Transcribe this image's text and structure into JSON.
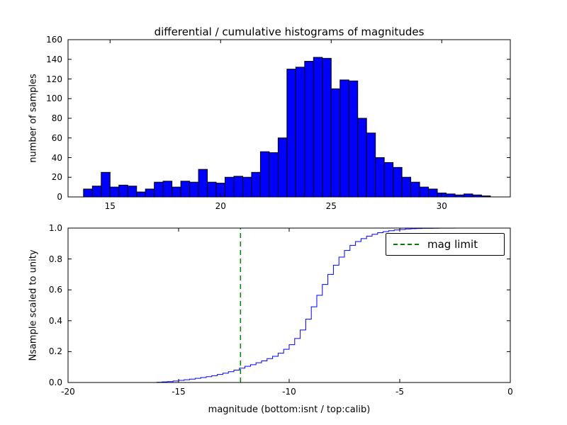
{
  "chart_data": [
    {
      "type": "bar",
      "title": "differential / cumulative histograms of magnitudes",
      "ylabel": "number of samples",
      "xlim": [
        13.1,
        33.1
      ],
      "ylim": [
        0,
        160
      ],
      "xtick_labels": [
        "15",
        "20",
        "25",
        "30"
      ],
      "ytick_labels": [
        "0",
        "20",
        "40",
        "60",
        "80",
        "100",
        "120",
        "140",
        "160"
      ],
      "bar_color": "#0000ff",
      "bar_edge_color": "#000000",
      "bins_start": 13.8,
      "bin_width": 0.4,
      "values": [
        8,
        11,
        25,
        10,
        12,
        11,
        5,
        8,
        15,
        16,
        10,
        16,
        15,
        28,
        15,
        14,
        20,
        21,
        20,
        25,
        46,
        45,
        60,
        130,
        132,
        138,
        142,
        141,
        110,
        119,
        118,
        80,
        65,
        40,
        35,
        30,
        20,
        15,
        10,
        8,
        4,
        3,
        2,
        3,
        2,
        1
      ]
    },
    {
      "type": "line",
      "ylabel": "Nsample scaled to unity",
      "xlabel": "magnitude (bottom:isnt / top:calib)",
      "xlim": [
        -20,
        0
      ],
      "ylim": [
        0,
        1
      ],
      "xtick_labels": [
        "-20",
        "-15",
        "-10",
        "-5",
        "0"
      ],
      "ytick_labels": [
        "0.0",
        "0.2",
        "0.4",
        "0.6",
        "0.8",
        "1.0"
      ],
      "line_color": "#0000ff",
      "x": [
        -16,
        -15.75,
        -15.5,
        -15.25,
        -15,
        -14.75,
        -14.5,
        -14.25,
        -14,
        -13.75,
        -13.5,
        -13.25,
        -13,
        -12.75,
        -12.5,
        -12.25,
        -12,
        -11.75,
        -11.5,
        -11.25,
        -11,
        -10.75,
        -10.5,
        -10.25,
        -10,
        -9.75,
        -9.5,
        -9.25,
        -9,
        -8.75,
        -8.5,
        -8.25,
        -8,
        -7.75,
        -7.5,
        -7.25,
        -7,
        -6.75,
        -6.5,
        -6.25,
        -6,
        -5.75,
        -5.5,
        -5.25,
        -5,
        -4.75,
        -4.5,
        -4.25,
        -4,
        -3.75,
        -3.5,
        -3.25,
        -3,
        -2.75,
        -2.5,
        -2.25,
        -2
      ],
      "y": [
        0.002,
        0.004,
        0.006,
        0.01,
        0.014,
        0.018,
        0.022,
        0.027,
        0.032,
        0.038,
        0.044,
        0.052,
        0.06,
        0.07,
        0.08,
        0.093,
        0.105,
        0.115,
        0.128,
        0.14,
        0.155,
        0.17,
        0.19,
        0.215,
        0.245,
        0.285,
        0.34,
        0.41,
        0.49,
        0.565,
        0.635,
        0.7,
        0.76,
        0.812,
        0.855,
        0.888,
        0.913,
        0.932,
        0.948,
        0.96,
        0.97,
        0.977,
        0.983,
        0.988,
        0.991,
        0.994,
        0.996,
        0.997,
        0.998,
        0.9985,
        0.999,
        0.9993,
        0.9996,
        0.9997,
        0.9998,
        0.9999,
        1.0
      ],
      "mag_limit": {
        "x": -12.2,
        "label": "mag limit",
        "color": "#008000",
        "line_style": "dashed"
      }
    }
  ]
}
